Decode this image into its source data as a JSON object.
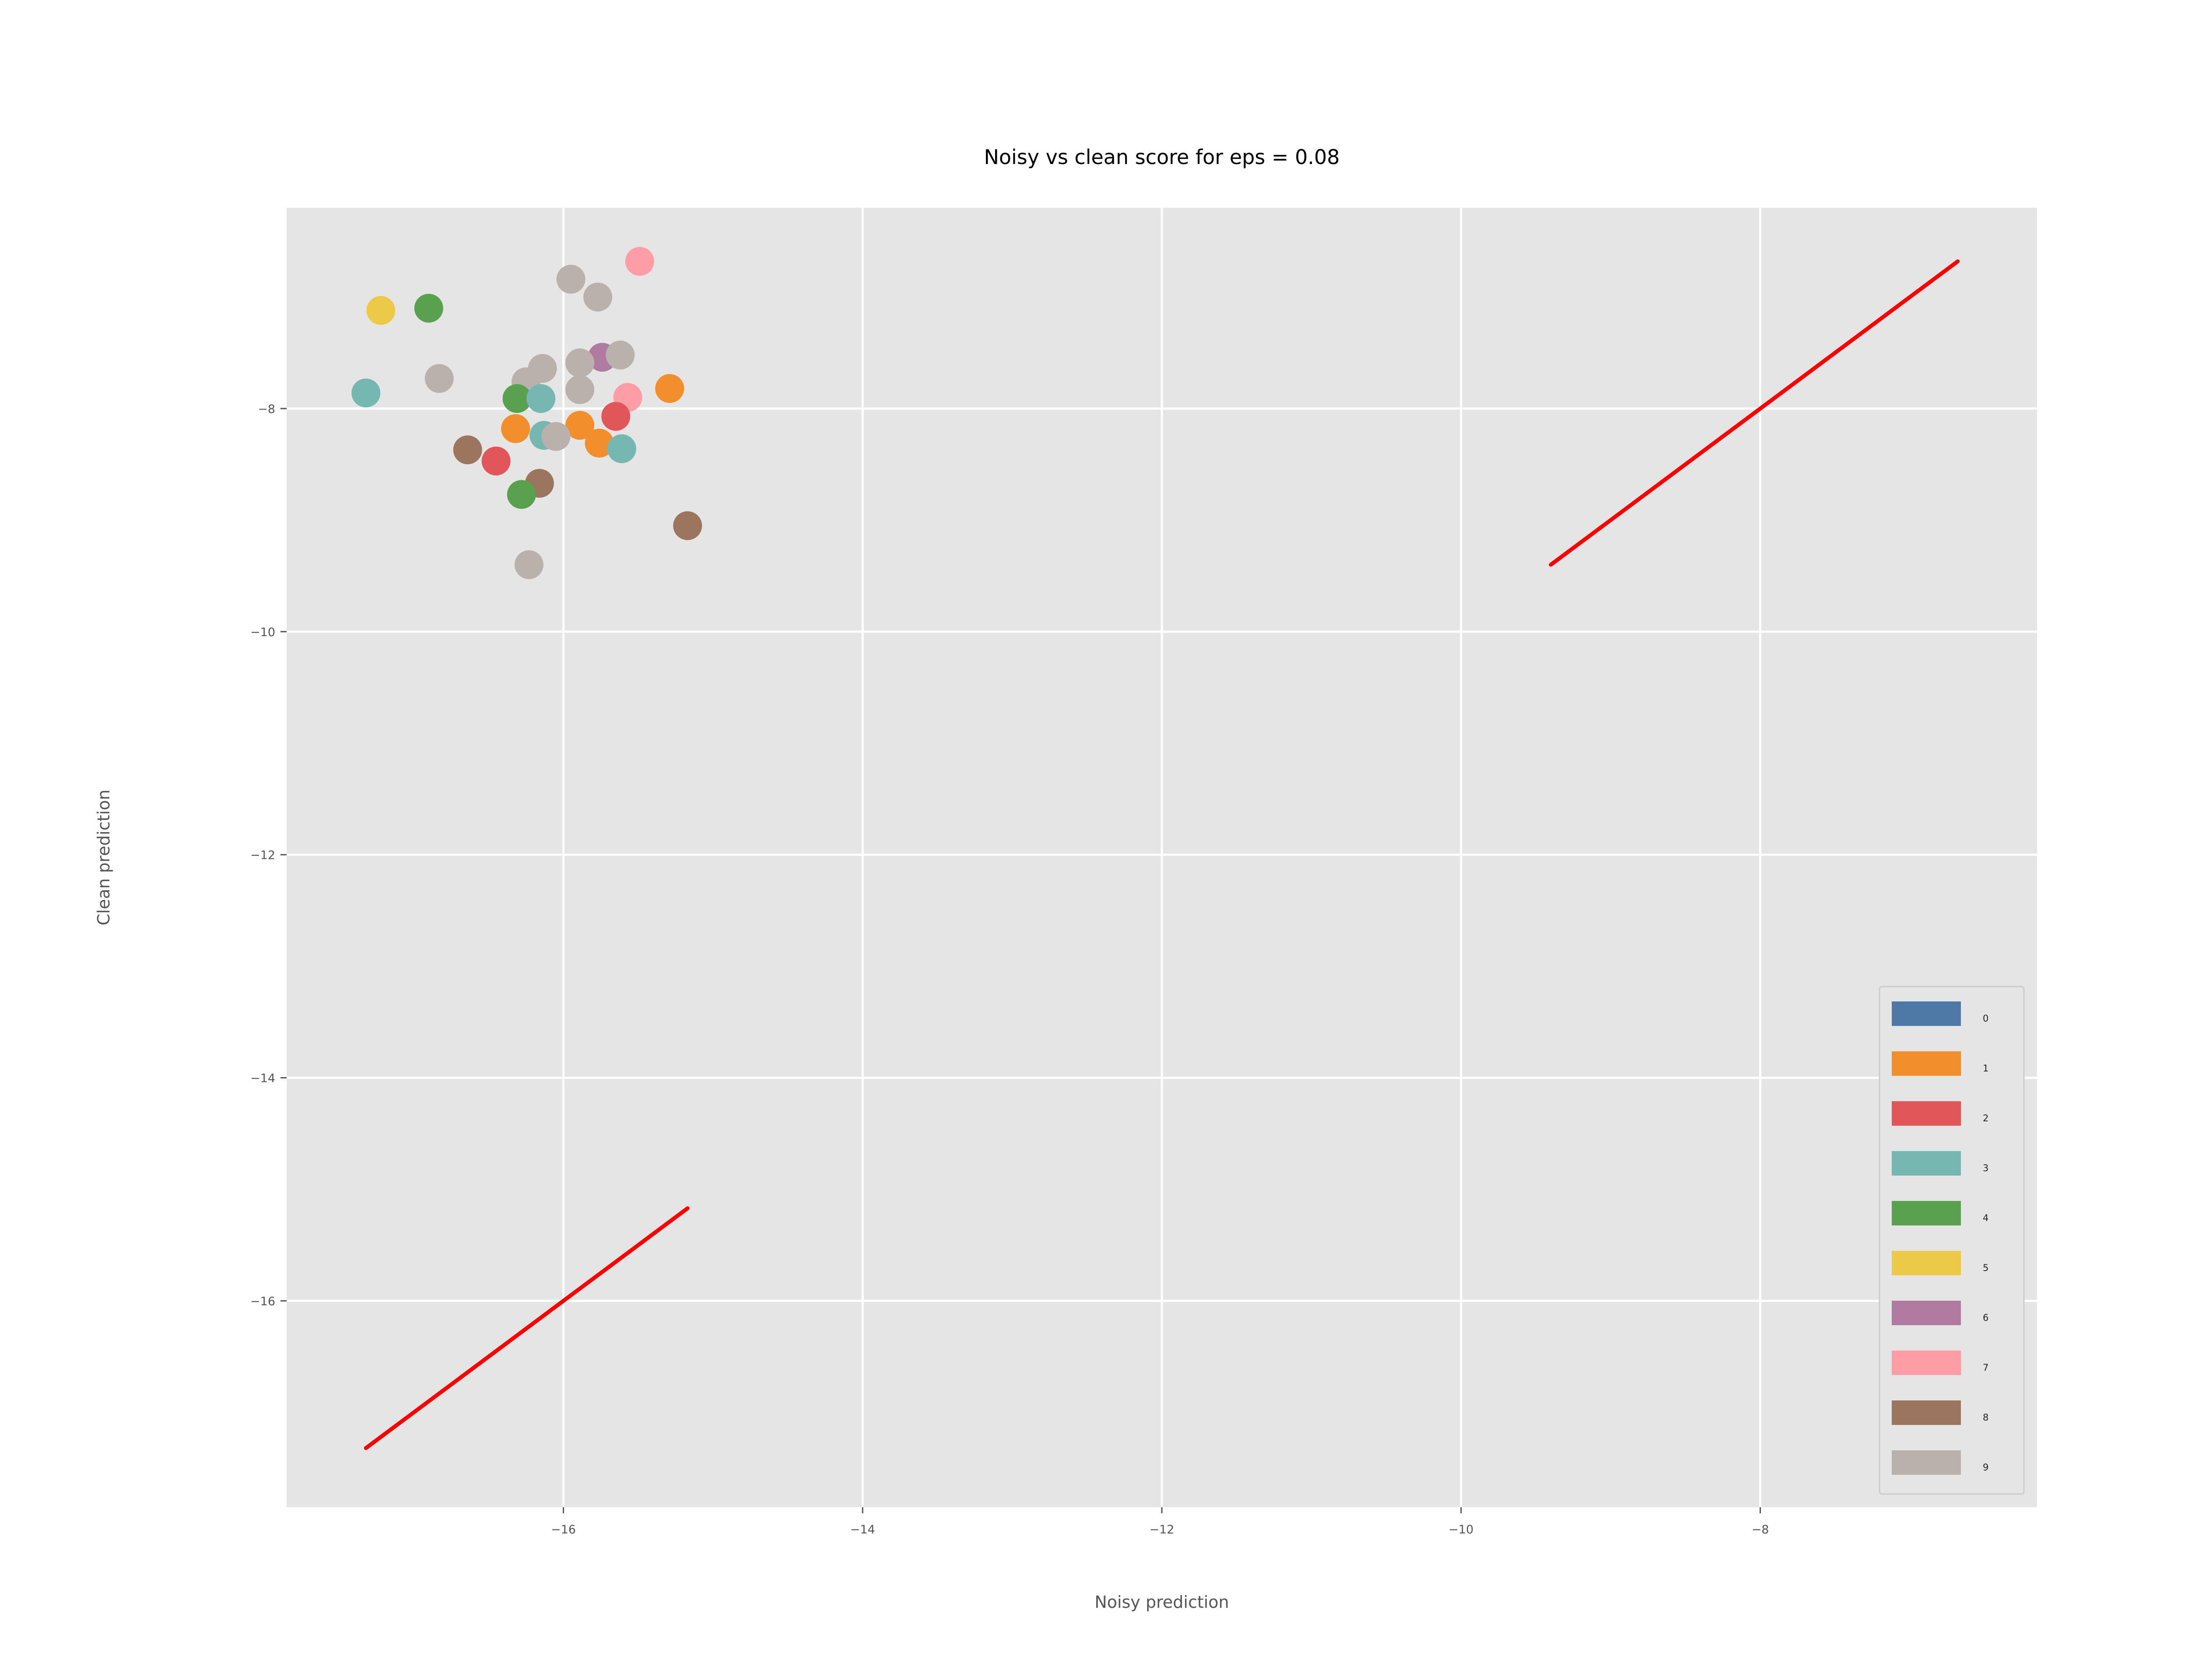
{
  "chart_data": {
    "type": "scatter",
    "title": "Noisy vs clean score for eps = 0.08",
    "xlabel": "Noisy prediction",
    "ylabel": "Clean prediction",
    "xlim": [
      -17.85,
      -6.15
    ],
    "ylim": [
      -17.85,
      -6.2
    ],
    "xticks": [
      -16,
      -14,
      -12,
      -10,
      -8
    ],
    "yticks": [
      -8,
      -10,
      -12,
      -14,
      -16
    ],
    "grid": true,
    "background": "#e5e5e5",
    "legend_position": "lower-right",
    "legend": [
      {
        "label": "0",
        "color": "#4e79a7"
      },
      {
        "label": "1",
        "color": "#f28e2b"
      },
      {
        "label": "2",
        "color": "#e15759"
      },
      {
        "label": "3",
        "color": "#76b7b2"
      },
      {
        "label": "4",
        "color": "#59a14f"
      },
      {
        "label": "5",
        "color": "#edc948"
      },
      {
        "label": "6",
        "color": "#b07aa1"
      },
      {
        "label": "7",
        "color": "#ff9da7"
      },
      {
        "label": "8",
        "color": "#9c755f"
      },
      {
        "label": "9",
        "color": "#bab0ac"
      }
    ],
    "points": [
      {
        "x": -17.22,
        "y": -7.12,
        "c": "5"
      },
      {
        "x": -16.9,
        "y": -7.1,
        "c": "4"
      },
      {
        "x": -17.32,
        "y": -7.86,
        "c": "3"
      },
      {
        "x": -16.83,
        "y": -7.73,
        "c": "9"
      },
      {
        "x": -15.95,
        "y": -6.84,
        "c": "9"
      },
      {
        "x": -15.77,
        "y": -7.0,
        "c": "9"
      },
      {
        "x": -15.49,
        "y": -6.68,
        "c": "7"
      },
      {
        "x": -15.74,
        "y": -7.54,
        "c": "6"
      },
      {
        "x": -15.62,
        "y": -7.52,
        "c": "9"
      },
      {
        "x": -15.89,
        "y": -7.59,
        "c": "9"
      },
      {
        "x": -16.14,
        "y": -7.64,
        "c": "9"
      },
      {
        "x": -16.25,
        "y": -7.76,
        "c": "9"
      },
      {
        "x": -15.89,
        "y": -7.83,
        "c": "9"
      },
      {
        "x": -15.29,
        "y": -7.82,
        "c": "1"
      },
      {
        "x": -15.57,
        "y": -7.9,
        "c": "7"
      },
      {
        "x": -16.31,
        "y": -7.91,
        "c": "4"
      },
      {
        "x": -16.15,
        "y": -7.91,
        "c": "3"
      },
      {
        "x": -15.65,
        "y": -8.07,
        "c": "2"
      },
      {
        "x": -15.89,
        "y": -8.15,
        "c": "1"
      },
      {
        "x": -16.32,
        "y": -8.18,
        "c": "1"
      },
      {
        "x": -16.13,
        "y": -8.24,
        "c": "3"
      },
      {
        "x": -16.05,
        "y": -8.25,
        "c": "9"
      },
      {
        "x": -15.76,
        "y": -8.31,
        "c": "1"
      },
      {
        "x": -15.61,
        "y": -8.36,
        "c": "3"
      },
      {
        "x": -16.64,
        "y": -8.37,
        "c": "8"
      },
      {
        "x": -16.45,
        "y": -8.47,
        "c": "2"
      },
      {
        "x": -16.16,
        "y": -8.67,
        "c": "8"
      },
      {
        "x": -16.28,
        "y": -8.77,
        "c": "4"
      },
      {
        "x": -15.17,
        "y": -9.05,
        "c": "8"
      },
      {
        "x": -16.23,
        "y": -9.4,
        "c": "9"
      }
    ],
    "lines": [
      {
        "color": "#ff0000",
        "x": [
          -17.32,
          -15.17
        ],
        "y": [
          -17.32,
          -15.17
        ]
      },
      {
        "color": "#ff0000",
        "x": [
          -9.4,
          -6.68
        ],
        "y": [
          -9.4,
          -6.68
        ]
      }
    ]
  }
}
